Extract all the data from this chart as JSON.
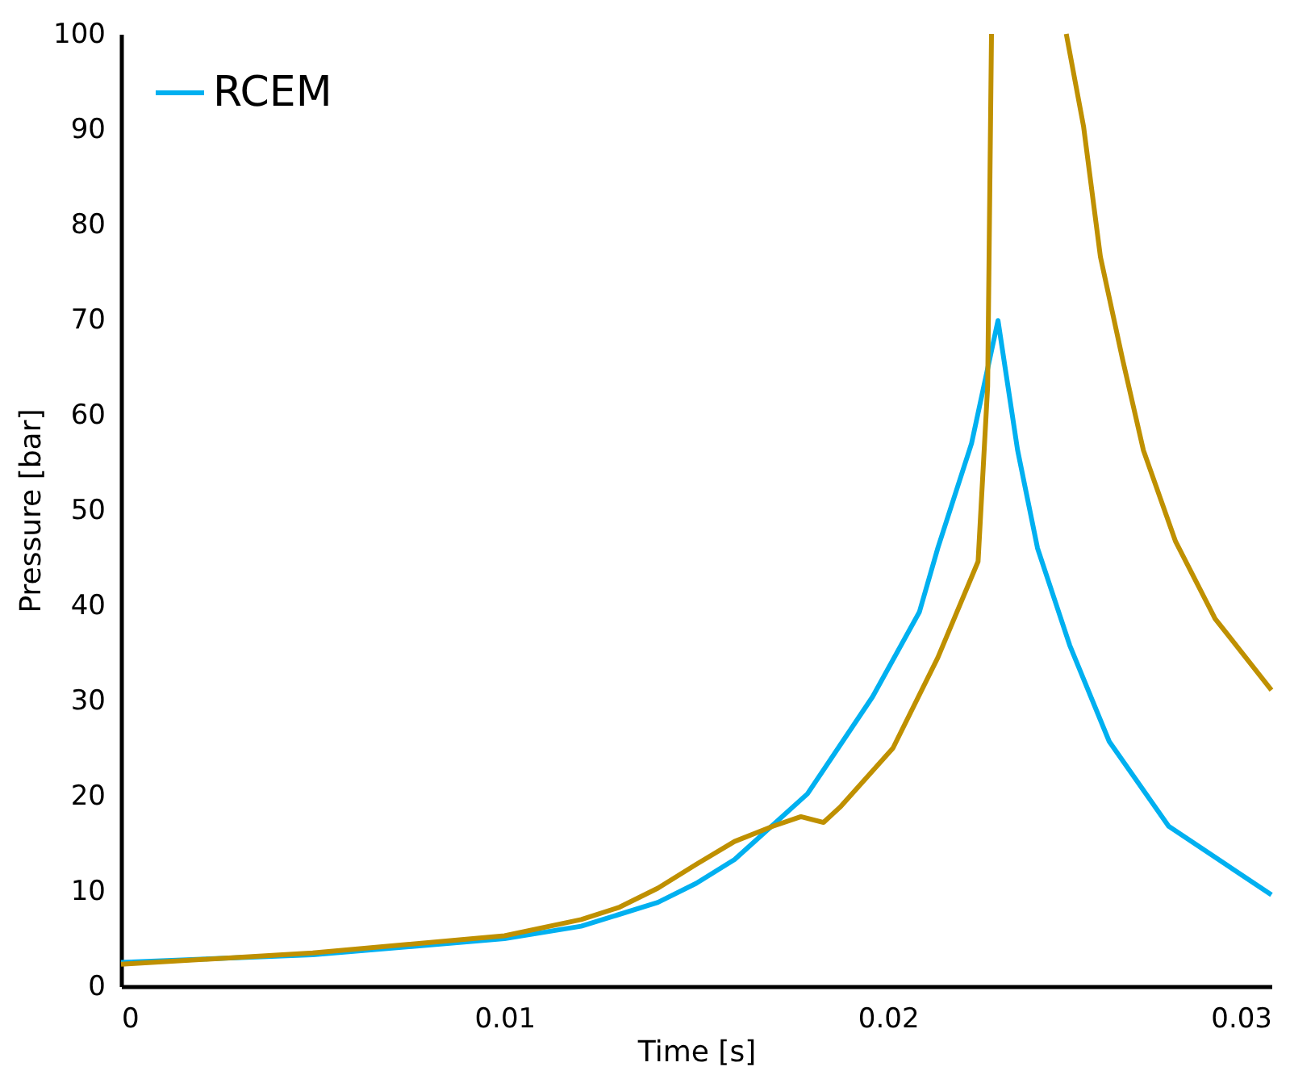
{
  "chart_data": {
    "type": "line",
    "xlabel": "Time [s]",
    "ylabel": "Pressure [bar]",
    "xlim": [
      0,
      0.03
    ],
    "xticks": [
      0,
      0.01,
      0.02,
      0.03
    ],
    "ylim": [
      0,
      100
    ],
    "yticks": [
      0,
      10,
      20,
      30,
      40,
      50,
      60,
      70,
      80,
      90,
      100
    ],
    "grid": false,
    "legend": "top left",
    "marker": "none",
    "line_style": "solid",
    "series": [
      {
        "name": "RCEM",
        "color": "#00b0f0",
        "x": [
          0,
          0.005,
          0.01,
          0.012,
          0.014,
          0.015,
          0.016,
          0.0179,
          0.0196,
          0.02082,
          0.0213,
          0.02218,
          0.0225,
          0.02287,
          0.02338,
          0.0239,
          0.02474,
          0.02577,
          0.02732,
          0.03
        ],
        "values": [
          2.5,
          3.3,
          5.0,
          6.3,
          8.8,
          10.8,
          13.3,
          20.2,
          30.4,
          39.3,
          46,
          57,
          63,
          69.9,
          56.3,
          46,
          35.8,
          25.7,
          16.8,
          9.6
        ]
      },
      {
        "color": "#bf9000",
        "x": [
          0,
          0.005,
          0.01,
          0.012,
          0.013,
          0.014,
          0.015,
          0.016,
          0.017,
          0.01773,
          0.01832,
          0.01875,
          0.02013,
          0.0213,
          0.02235,
          0.0226,
          0.0227,
          0.0235,
          0.02465,
          0.0251,
          0.02554,
          0.02612,
          0.02666,
          0.0275,
          0.02853,
          0.03
        ],
        "values": [
          2.3,
          3.5,
          5.3,
          7,
          8.3,
          10.3,
          12.8,
          15.2,
          16.8,
          17.8,
          17.2,
          18.8,
          25,
          34.5,
          44.6,
          63,
          100,
          null,
          100,
          90.3,
          76.6,
          65.8,
          56.3,
          46.7,
          38.6,
          31.1
        ]
      }
    ]
  }
}
